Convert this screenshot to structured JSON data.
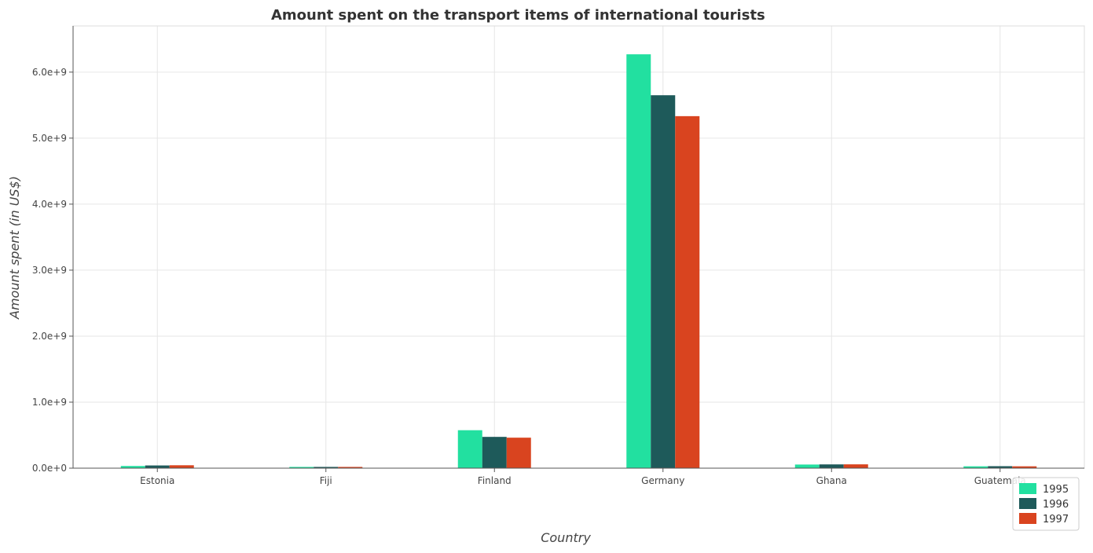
{
  "chart_data": {
    "type": "bar",
    "title": "Amount spent on the transport items of international tourists",
    "xlabel": "Country",
    "ylabel": "Amount spent (in US$)",
    "categories": [
      "Estonia",
      "Fiji",
      "Finland",
      "Germany",
      "Ghana",
      "Guatemala"
    ],
    "series": [
      {
        "name": "1995",
        "color": "#22e0a0",
        "values": [
          33000000,
          19000000,
          575000000,
          6270000000,
          55000000,
          28000000
        ]
      },
      {
        "name": "1996",
        "color": "#1e5a5a",
        "values": [
          41000000,
          19000000,
          474000000,
          5650000000,
          57000000,
          30000000
        ]
      },
      {
        "name": "1997",
        "color": "#d9441f",
        "values": [
          44000000,
          19000000,
          462000000,
          5333000000,
          58000000,
          28000000
        ]
      }
    ],
    "ylim": [
      0,
      6700000000
    ],
    "yticks": [
      0,
      1000000000,
      2000000000,
      3000000000,
      4000000000,
      5000000000,
      6000000000
    ],
    "ytick_labels": [
      "0.0e+0",
      "1.0e+9",
      "2.0e+9",
      "3.0e+9",
      "4.0e+9",
      "5.0e+9",
      "6.0e+9"
    ],
    "grid": true,
    "legend_position": "bottom-right"
  }
}
